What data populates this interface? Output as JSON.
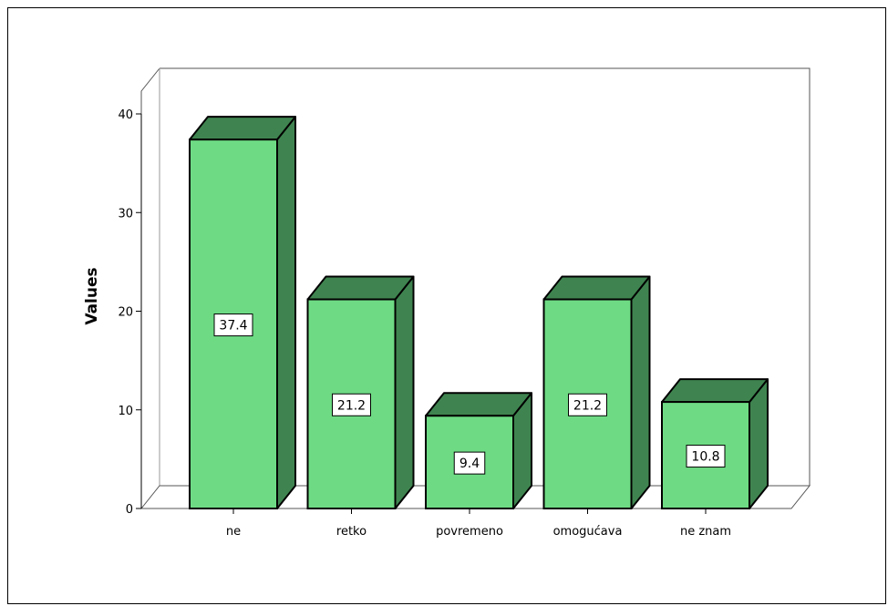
{
  "chart_data": {
    "type": "bar",
    "style": "3d",
    "categories": [
      "ne",
      "retko",
      "povremeno",
      "omogućava",
      "ne znam"
    ],
    "values": [
      37.4,
      21.2,
      9.4,
      21.2,
      10.8
    ],
    "data_labels": [
      "37.4",
      "21.2",
      "9.4",
      "21.2",
      "10.8"
    ],
    "ylabel": "Values",
    "xlabel": "",
    "ylim": [
      0,
      40
    ],
    "yticks": [
      0,
      10,
      20,
      30,
      40
    ],
    "colors": {
      "bar_front": "#6EDB84",
      "bar_side": "#3F8450",
      "bar_top": "#3F8450",
      "stroke": "#000000"
    }
  }
}
